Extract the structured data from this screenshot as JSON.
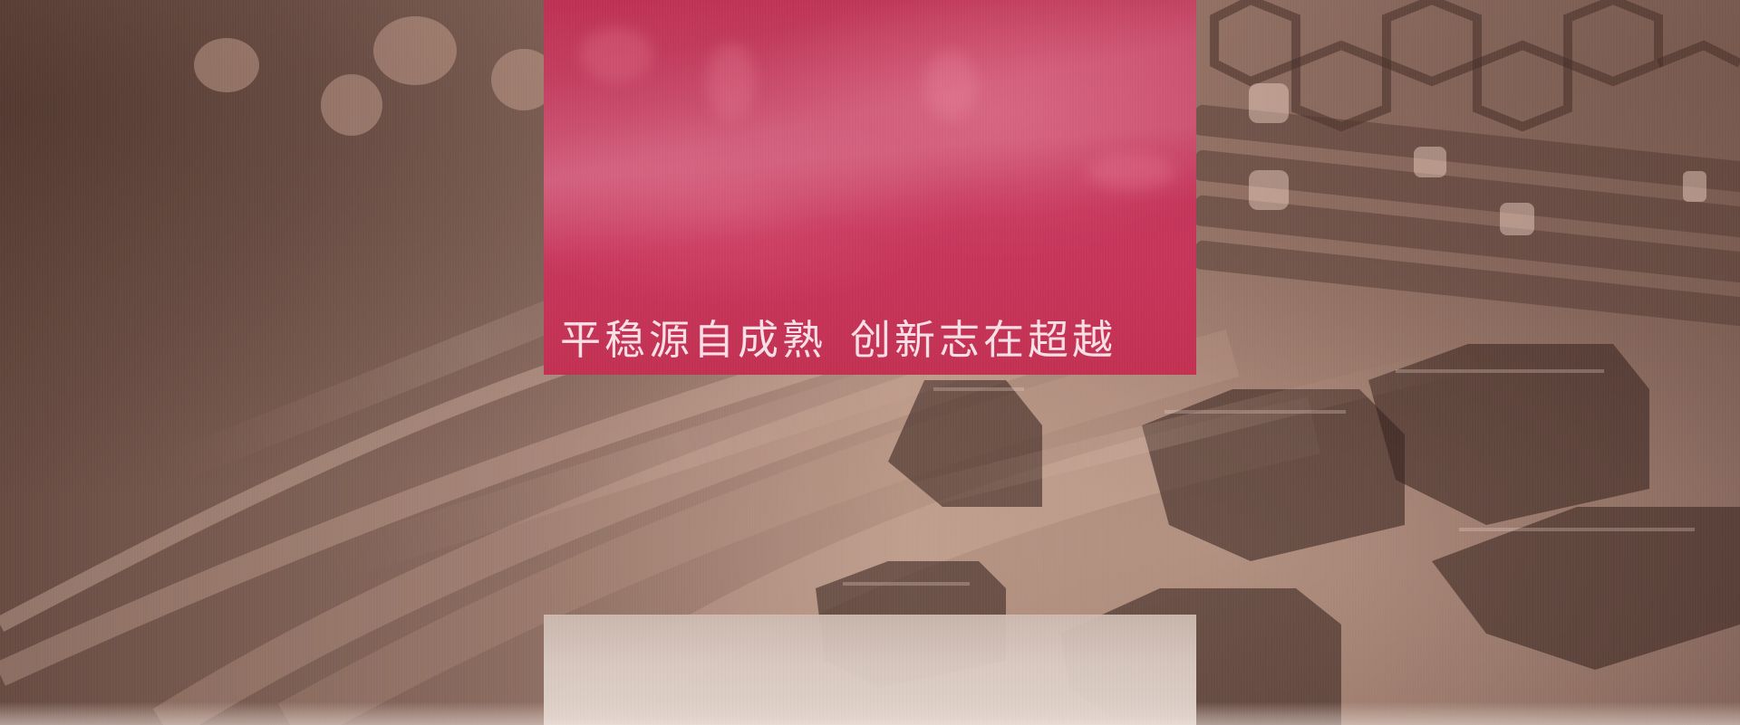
{
  "hero": {
    "slogan_part_1": "平稳源自成熟",
    "slogan_part_2": "创新志在超越"
  },
  "theme": {
    "hero_panel_color": "#c3355a",
    "lower_panel_color": "#dccac2"
  }
}
